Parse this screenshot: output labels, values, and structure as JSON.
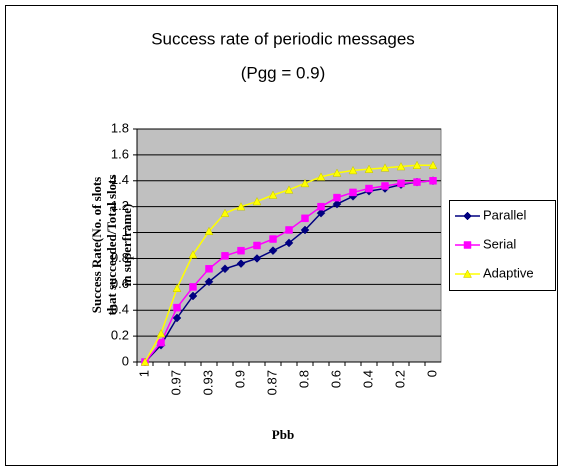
{
  "chart_data": {
    "type": "line",
    "title": [
      "Success rate of periodic messages",
      "(Pgg = 0.9)"
    ],
    "x_label": "Pbb",
    "y_label": [
      "Success Rate(No. of slots",
      "that succeeded/Total slots",
      "in superframe)"
    ],
    "categories": [
      "1",
      null,
      "0.97",
      null,
      "0.93",
      null,
      "0.9",
      null,
      "0.87",
      null,
      "0.8",
      null,
      "0.6",
      null,
      "0.4",
      null,
      "0.2",
      null,
      "0"
    ],
    "series": [
      {
        "name": "Parallel",
        "color": "#000080",
        "marker": "diamond",
        "values": [
          0,
          0.13,
          0.34,
          0.51,
          0.62,
          0.72,
          0.76,
          0.8,
          0.86,
          0.92,
          1.02,
          1.15,
          1.22,
          1.28,
          1.32,
          1.34,
          1.37,
          1.39,
          1.4
        ]
      },
      {
        "name": "Serial",
        "color": "#ff00ff",
        "marker": "square",
        "values": [
          0,
          0.15,
          0.42,
          0.58,
          0.72,
          0.82,
          0.86,
          0.9,
          0.95,
          1.02,
          1.11,
          1.2,
          1.27,
          1.31,
          1.34,
          1.36,
          1.38,
          1.39,
          1.4
        ]
      },
      {
        "name": "Adaptive",
        "color": "#ffff00",
        "marker": "triangle",
        "values": [
          0,
          0.22,
          0.57,
          0.83,
          1.01,
          1.15,
          1.2,
          1.24,
          1.29,
          1.33,
          1.38,
          1.43,
          1.46,
          1.48,
          1.49,
          1.5,
          1.51,
          1.52,
          1.52
        ]
      }
    ],
    "ylim": [
      0,
      1.8
    ],
    "yticks": [
      0,
      0.2,
      0.4,
      0.6,
      0.8,
      1,
      1.2,
      1.4,
      1.6,
      1.8
    ],
    "grid": true,
    "legend": "right"
  }
}
